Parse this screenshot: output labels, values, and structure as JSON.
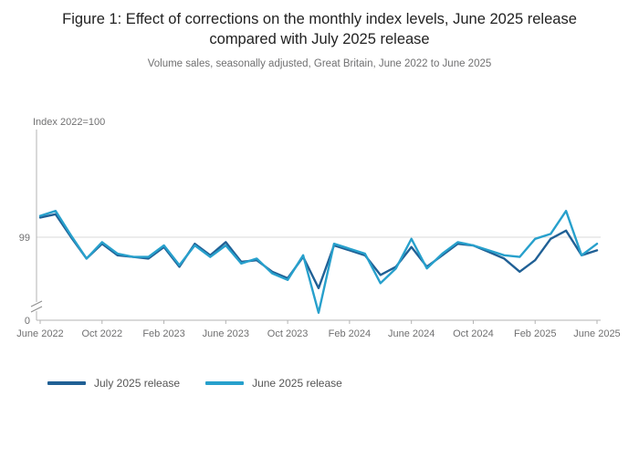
{
  "figure": {
    "title": "Figure 1: Effect of corrections on the monthly index levels, June 2025 release compared with July 2025 release",
    "subtitle": "Volume sales, seasonally adjusted, Great Britain, June 2022 to June 2025"
  },
  "chart_data": {
    "type": "line",
    "title": "Figure 1: Effect of corrections on the monthly index levels, June 2025 release compared with July 2025 release",
    "subtitle": "Volume sales, seasonally adjusted, Great Britain, June 2022 to June 2025",
    "y_axis_title": "Index 2022=100",
    "y_tick_labels": [
      "99",
      "0"
    ],
    "y_axis_break": true,
    "gridline_value": 99,
    "ylim_display": [
      94,
      101
    ],
    "legend_position": "bottom-left",
    "grid": "single horizontal gridline at 99, broken y-axis to 0",
    "categories": [
      "June 2022",
      "July 2022",
      "Aug 2022",
      "Sep 2022",
      "Oct 2022",
      "Nov 2022",
      "Dec 2022",
      "Jan 2023",
      "Feb 2023",
      "Mar 2023",
      "Apr 2023",
      "May 2023",
      "June 2023",
      "July 2023",
      "Aug 2023",
      "Sep 2023",
      "Oct 2023",
      "Nov 2023",
      "Dec 2023",
      "Jan 2024",
      "Feb 2024",
      "Mar 2024",
      "Apr 2024",
      "May 2024",
      "June 2024",
      "July 2024",
      "Aug 2024",
      "Sep 2024",
      "Oct 2024",
      "Nov 2024",
      "Dec 2024",
      "Jan 2025",
      "Feb 2025",
      "Mar 2025",
      "Apr 2025",
      "May 2025",
      "June 2025"
    ],
    "x_tick_labels": [
      "June 2022",
      "Oct 2022",
      "Feb 2023",
      "June 2023",
      "Oct 2023",
      "Feb 2024",
      "June 2024",
      "Oct 2024",
      "Feb 2025",
      "June 2025"
    ],
    "x_tick_interval": 4,
    "series": [
      {
        "name": "July 2025 release",
        "color": "#206095",
        "values": [
          100.2,
          100.4,
          99.0,
          97.7,
          98.6,
          97.9,
          97.8,
          97.7,
          98.4,
          97.2,
          98.6,
          97.9,
          98.7,
          97.5,
          97.6,
          96.9,
          96.5,
          97.8,
          95.9,
          98.5,
          98.2,
          97.9,
          96.7,
          97.2,
          98.4,
          97.2,
          97.9,
          98.6,
          98.5,
          98.1,
          97.7,
          96.9,
          97.6,
          98.9,
          99.4,
          97.9,
          98.2
        ]
      },
      {
        "name": "June 2025 release",
        "color": "#27A0CC",
        "values": [
          100.3,
          100.6,
          99.1,
          97.7,
          98.7,
          98.0,
          97.8,
          97.8,
          98.5,
          97.3,
          98.5,
          97.8,
          98.5,
          97.4,
          97.7,
          96.8,
          96.4,
          97.9,
          94.4,
          98.6,
          98.3,
          98.0,
          96.2,
          97.1,
          98.9,
          97.1,
          98.0,
          98.7,
          98.5,
          98.2,
          97.9,
          97.8,
          98.9,
          99.2,
          100.6,
          97.9,
          98.6
        ]
      }
    ]
  }
}
